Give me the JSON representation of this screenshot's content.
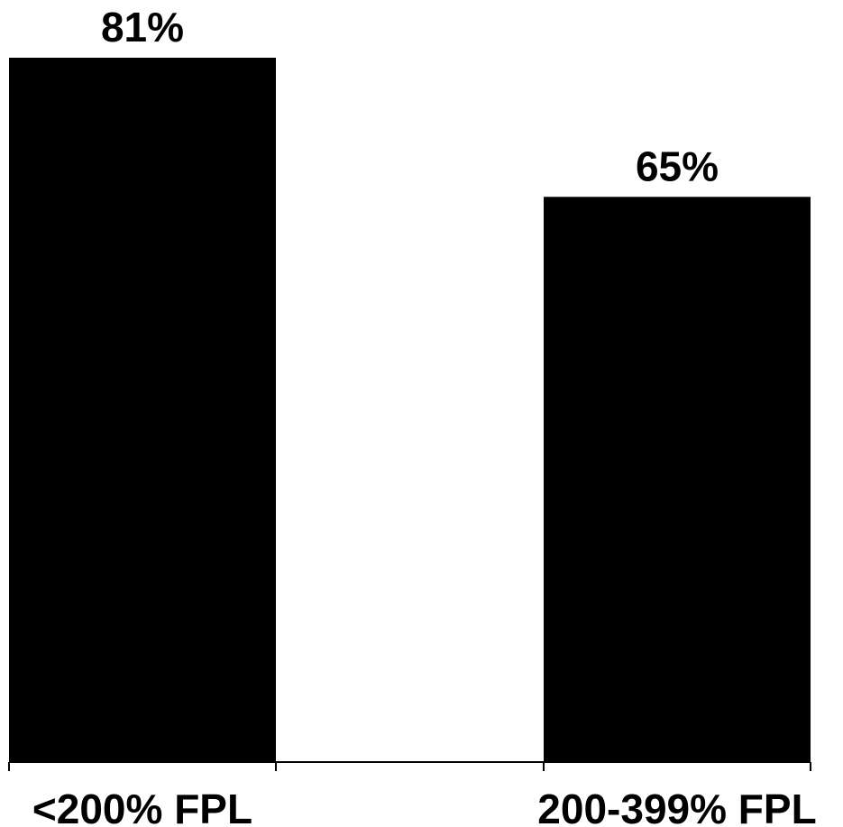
{
  "chart_data": {
    "type": "bar",
    "categories": [
      "<200% FPL",
      "200-399% FPL"
    ],
    "values": [
      81,
      65
    ],
    "data_labels": [
      "81%",
      "65%"
    ],
    "title": "",
    "xlabel": "",
    "ylabel": "",
    "ylim": [
      0,
      81
    ],
    "grid": false,
    "legend": "none",
    "bar_color": "#000000",
    "axis_color": "#000000"
  }
}
